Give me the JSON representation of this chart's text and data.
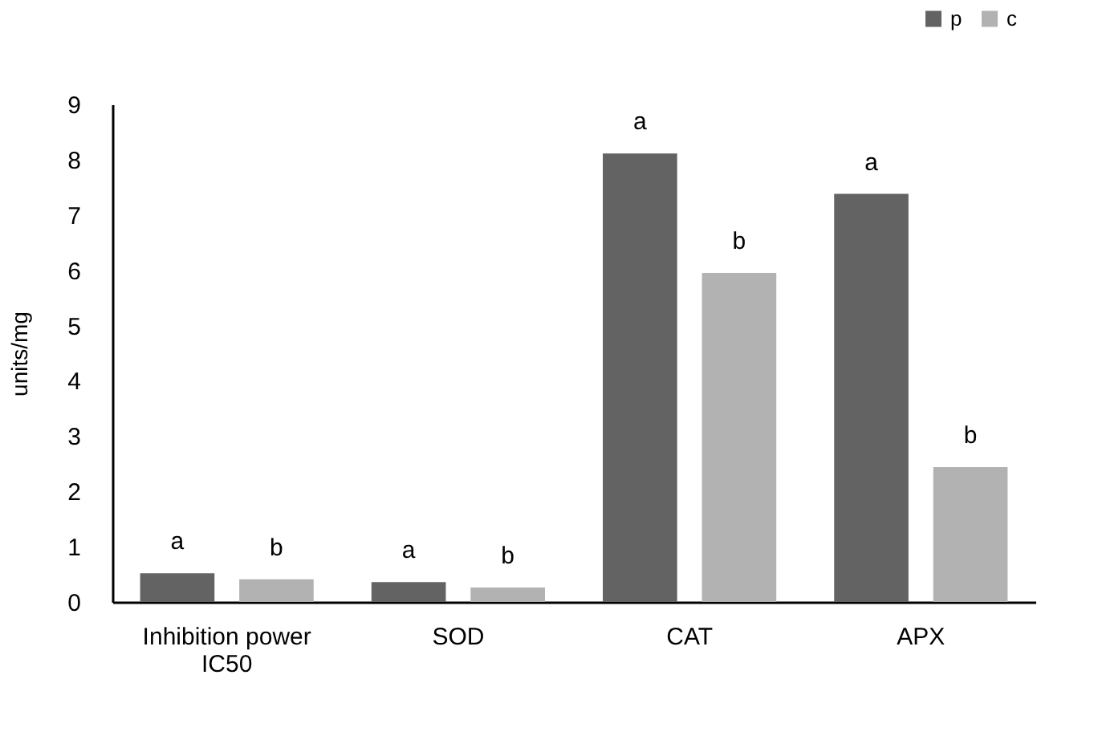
{
  "chart_data": {
    "type": "bar",
    "ylabel": "units/mg",
    "categories": [
      "Inhibition power IC50",
      "SOD",
      "CAT",
      "APX"
    ],
    "series": [
      {
        "name": "p",
        "color": "#636363",
        "values": [
          0.52,
          0.36,
          8.11,
          7.38
        ],
        "value_labels": [
          "a",
          "a",
          "a",
          "a"
        ]
      },
      {
        "name": "c",
        "color": "#b2b2b2",
        "values": [
          0.41,
          0.26,
          5.95,
          2.44
        ],
        "value_labels": [
          "b",
          "b",
          "b",
          "b"
        ]
      }
    ],
    "ylim": [
      0,
      9
    ],
    "yticks": [
      0,
      1,
      2,
      3,
      4,
      5,
      6,
      7,
      8,
      9
    ],
    "grid": false,
    "legend": "top right"
  }
}
